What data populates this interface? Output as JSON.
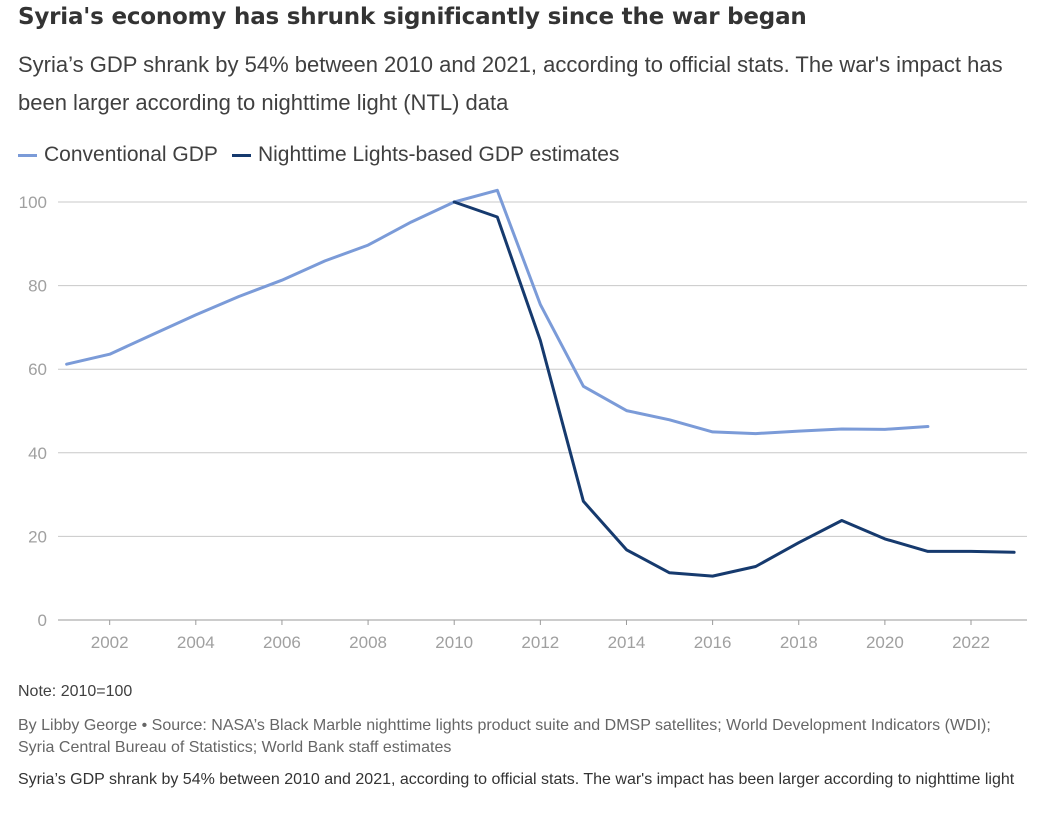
{
  "title": "Syria's economy has shrunk significantly since the war began",
  "subtitle": "Syria’s GDP shrank by 54% between 2010 and 2021, according to official stats. The war's impact has been larger according to nighttime light (NTL) data",
  "note": "Note: 2010=100",
  "byline": "By Libby George • Source: NASA’s Black Marble nighttime lights product suite and DMSP satellites; World Development Indicators (WDI); Syria Central Bureau of Statistics; World Bank staff estimates",
  "caption": "Syria’s GDP shrank by 54% between 2010 and 2021, according to official stats. The war's impact has been larger according to nighttime light",
  "chart_data": {
    "type": "line",
    "title": "Syria's economy has shrunk significantly since the war began",
    "xlabel": "",
    "ylabel": "",
    "xlim": [
      2000.8,
      2023.3
    ],
    "ylim": [
      0,
      100
    ],
    "yticks": [
      0,
      20,
      40,
      60,
      80,
      100
    ],
    "xticks": [
      2002,
      2004,
      2006,
      2008,
      2010,
      2012,
      2014,
      2016,
      2018,
      2020,
      2022
    ],
    "grid": "horizontal",
    "legend_position": "top-left",
    "series": [
      {
        "name": "Conventional GDP",
        "color": "#7b9bd8",
        "x": [
          2001,
          2002,
          2003,
          2004,
          2005,
          2006,
          2007,
          2008,
          2009,
          2010,
          2011,
          2012,
          2013,
          2014,
          2015,
          2016,
          2017,
          2018,
          2019,
          2020,
          2021
        ],
        "y": [
          61.2,
          63.6,
          68.3,
          73.0,
          77.4,
          81.3,
          85.9,
          89.7,
          95.2,
          100.0,
          102.8,
          75.5,
          55.9,
          50.1,
          47.9,
          45.0,
          44.6,
          45.2,
          45.7,
          45.6,
          46.3
        ]
      },
      {
        "name": "Nighttime Lights-based GDP estimates",
        "color": "#163a6e",
        "x": [
          2010,
          2011,
          2012,
          2013,
          2014,
          2015,
          2016,
          2017,
          2018,
          2019,
          2020,
          2021,
          2022,
          2023
        ],
        "y": [
          100.0,
          96.4,
          66.9,
          28.4,
          16.8,
          11.3,
          10.5,
          12.8,
          18.5,
          23.8,
          19.4,
          16.4,
          16.4,
          16.2
        ]
      }
    ]
  }
}
